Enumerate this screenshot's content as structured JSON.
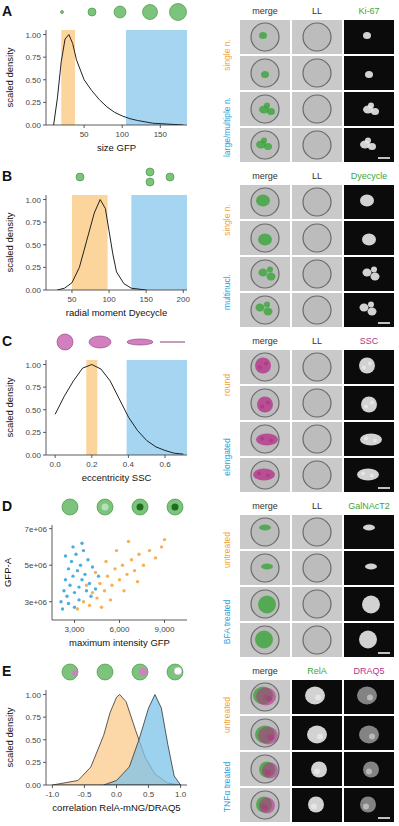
{
  "chart_data": [
    {
      "panel": "A",
      "type": "line",
      "xlabel": "size GFP",
      "ylabel": "scaled density",
      "xlim": [
        0,
        185
      ],
      "ylim": [
        0,
        1.05
      ],
      "xticks": [
        50,
        100,
        150
      ],
      "yticks": [
        {
          "value": 0,
          "label": "0.00"
        },
        0.25,
        {
          "value": 0.5,
          "label": "0.50"
        },
        0.75,
        {
          "value": 1,
          "label": "1.00"
        }
      ],
      "bands": [
        {
          "range": [
            20,
            38
          ],
          "color": "#fbd59c"
        },
        {
          "range": [
            105,
            185
          ],
          "color": "#a6d5f2"
        }
      ],
      "series": [
        {
          "color": "#222222",
          "x": [
            10,
            15,
            20,
            25,
            30,
            35,
            40,
            50,
            60,
            70,
            80,
            90,
            100,
            110,
            120,
            140,
            160,
            180
          ],
          "values": [
            0.0,
            0.3,
            0.7,
            0.95,
            1.0,
            0.9,
            0.72,
            0.5,
            0.38,
            0.28,
            0.2,
            0.14,
            0.1,
            0.07,
            0.05,
            0.02,
            0.01,
            0.0
          ]
        }
      ],
      "images": {
        "columns": [
          "merge",
          "LL",
          "Ki-67"
        ],
        "colors": [
          "#333333",
          "#333333",
          "#3aa53a"
        ],
        "rows": [
          {
            "label": "single n.",
            "color": "#f2a33a"
          },
          {
            "label": "large/multiple n.",
            "color": "#2d9fd9"
          }
        ]
      }
    },
    {
      "panel": "B",
      "type": "line",
      "xlabel": "radial moment Dyecycle",
      "ylabel": "scaled density",
      "xlim": [
        15,
        205
      ],
      "ylim": [
        0,
        1.05
      ],
      "xticks": [
        50,
        100,
        150,
        200
      ],
      "yticks": [
        {
          "value": 0,
          "label": "0.00"
        },
        0.25,
        {
          "value": 0.5,
          "label": "0.50"
        },
        0.75,
        {
          "value": 1,
          "label": "1.00"
        }
      ],
      "bands": [
        {
          "range": [
            50,
            98
          ],
          "color": "#fbd59c"
        },
        {
          "range": [
            130,
            205
          ],
          "color": "#a6d5f2"
        }
      ],
      "series": [
        {
          "color": "#222222",
          "x": [
            30,
            40,
            50,
            60,
            70,
            80,
            88,
            95,
            100,
            105,
            110,
            120,
            130,
            150
          ],
          "values": [
            0.0,
            0.02,
            0.08,
            0.25,
            0.55,
            0.85,
            1.0,
            0.9,
            0.65,
            0.4,
            0.2,
            0.07,
            0.02,
            0.0
          ]
        }
      ],
      "images": {
        "columns": [
          "merge",
          "LL",
          "Dyecycle"
        ],
        "colors": [
          "#333333",
          "#333333",
          "#3aa53a"
        ],
        "rows": [
          {
            "label": "single n.",
            "color": "#f2a33a"
          },
          {
            "label": "multinucl.",
            "color": "#2d9fd9"
          }
        ]
      }
    },
    {
      "panel": "C",
      "type": "line",
      "xlabel": "eccentricity SSC",
      "ylabel": "scaled density",
      "xlim": [
        -0.05,
        0.72
      ],
      "ylim": [
        0,
        1.05
      ],
      "xticks": [
        {
          "value": 0,
          "label": "0.0"
        },
        0.2,
        0.4,
        0.6
      ],
      "yticks": [
        {
          "value": 0,
          "label": "0.00"
        },
        0.25,
        {
          "value": 0.5,
          "label": "0.50"
        },
        0.75,
        {
          "value": 1,
          "label": "1.00"
        }
      ],
      "bands": [
        {
          "range": [
            0.17,
            0.23
          ],
          "color": "#fbd59c"
        },
        {
          "range": [
            0.39,
            0.72
          ],
          "color": "#a6d5f2"
        }
      ],
      "series": [
        {
          "color": "#222222",
          "x": [
            0.0,
            0.05,
            0.1,
            0.15,
            0.2,
            0.25,
            0.3,
            0.35,
            0.4,
            0.45,
            0.5,
            0.55,
            0.6,
            0.65,
            0.7
          ],
          "values": [
            0.45,
            0.65,
            0.82,
            0.96,
            1.0,
            0.95,
            0.82,
            0.62,
            0.42,
            0.27,
            0.16,
            0.09,
            0.05,
            0.02,
            0.01
          ]
        }
      ],
      "images": {
        "columns": [
          "merge",
          "LL",
          "SSC"
        ],
        "colors": [
          "#333333",
          "#333333",
          "#b5338a"
        ],
        "rows": [
          {
            "label": "round",
            "color": "#f2a33a"
          },
          {
            "label": "elongated",
            "color": "#2d9fd9"
          }
        ]
      }
    },
    {
      "panel": "D",
      "type": "scatter",
      "xlabel": "maximum intensity GFP",
      "ylabel": "GFP-A",
      "xlim": [
        1500,
        10500
      ],
      "ylim": [
        2000000,
        7200000
      ],
      "xticks": [
        {
          "value": 3000,
          "label": "3,000"
        },
        {
          "value": 6000,
          "label": "6,000"
        },
        {
          "value": 9000,
          "label": "9,000"
        }
      ],
      "yticks": [
        {
          "value": 3000000,
          "label": "3e+06"
        },
        {
          "value": 5000000,
          "label": "5e+06"
        },
        {
          "value": 7000000,
          "label": "7e+06"
        }
      ],
      "series": [
        {
          "color": "#f2a33a",
          "x": [
            3200,
            3600,
            4000,
            4200,
            4500,
            4700,
            5000,
            5200,
            5500,
            5700,
            6000,
            6200,
            6500,
            6800,
            7000,
            7300,
            7600,
            8000,
            8400,
            8800,
            3800,
            4400,
            5100,
            5800,
            6600,
            4800,
            5400,
            6300,
            7200,
            9000
          ],
          "values": [
            2600000,
            3000000,
            2800000,
            3500000,
            3200000,
            4000000,
            3600000,
            4400000,
            3900000,
            4800000,
            4200000,
            5000000,
            4500000,
            5300000,
            4700000,
            5600000,
            5000000,
            5800000,
            5400000,
            6000000,
            3900000,
            4600000,
            5200000,
            5800000,
            6300000,
            2700000,
            3100000,
            3600000,
            4100000,
            6400000
          ]
        },
        {
          "color": "#2d9fd9",
          "x": [
            2100,
            2300,
            2400,
            2500,
            2600,
            2700,
            2800,
            2900,
            3000,
            3100,
            3200,
            3300,
            3400,
            3500,
            3600,
            3700,
            3800,
            3900,
            4000,
            4200,
            4400,
            2200,
            2600,
            3000,
            3300,
            3500,
            4100,
            4600,
            2400,
            2900
          ],
          "values": [
            3000000,
            3600000,
            4200000,
            3300000,
            4800000,
            3900000,
            5200000,
            4400000,
            3500000,
            5600000,
            4700000,
            3800000,
            5000000,
            4200000,
            5800000,
            4500000,
            3600000,
            5300000,
            4000000,
            4900000,
            3700000,
            2600000,
            2900000,
            2700000,
            3100000,
            6200000,
            3300000,
            4400000,
            5500000,
            6000000
          ]
        }
      ],
      "images": {
        "columns": [
          "merge",
          "LL",
          "GalNAcT2"
        ],
        "colors": [
          "#333333",
          "#333333",
          "#3aa53a"
        ],
        "rows": [
          {
            "label": "untreated",
            "color": "#f2a33a"
          },
          {
            "label": "BFA treated",
            "color": "#2d9fd9"
          }
        ]
      }
    },
    {
      "panel": "E",
      "type": "area",
      "xlabel": "correlation RelA-mNG/DRAQ5",
      "ylabel": "scaled density",
      "xlim": [
        -1.1,
        1.1
      ],
      "ylim": [
        0,
        1.05
      ],
      "xticks": [
        {
          "value": -1,
          "label": "-1.0"
        },
        -0.5,
        {
          "value": 0,
          "label": "0.0"
        },
        0.5,
        {
          "value": 1,
          "label": "1.0"
        }
      ],
      "yticks": [
        {
          "value": 0,
          "label": "0.00"
        },
        0.25,
        {
          "value": 0.5,
          "label": "0.50"
        },
        0.75,
        {
          "value": 1,
          "label": "1.00"
        }
      ],
      "series": [
        {
          "color": "#fbc98a",
          "x": [
            -1.0,
            -0.6,
            -0.4,
            -0.2,
            -0.1,
            0.0,
            0.05,
            0.15,
            0.3,
            0.45,
            0.6,
            0.8,
            1.0
          ],
          "values": [
            0.0,
            0.05,
            0.2,
            0.55,
            0.8,
            0.97,
            1.0,
            0.92,
            0.6,
            0.3,
            0.12,
            0.02,
            0.0
          ]
        },
        {
          "color": "#7cc3ea",
          "x": [
            -0.2,
            0.0,
            0.2,
            0.35,
            0.5,
            0.6,
            0.7,
            0.8,
            0.9,
            1.0
          ],
          "values": [
            0.0,
            0.05,
            0.2,
            0.5,
            0.85,
            1.0,
            0.85,
            0.45,
            0.1,
            0.0
          ]
        }
      ],
      "images": {
        "columns": [
          "merge",
          "RelA",
          "DRAQ5"
        ],
        "colors": [
          "#333333",
          "#3aa53a",
          "#b5338a"
        ],
        "rows": [
          {
            "label": "untreated",
            "color": "#f2a33a"
          },
          {
            "label": "TNFα treated",
            "color": "#2d9fd9"
          }
        ]
      }
    }
  ]
}
